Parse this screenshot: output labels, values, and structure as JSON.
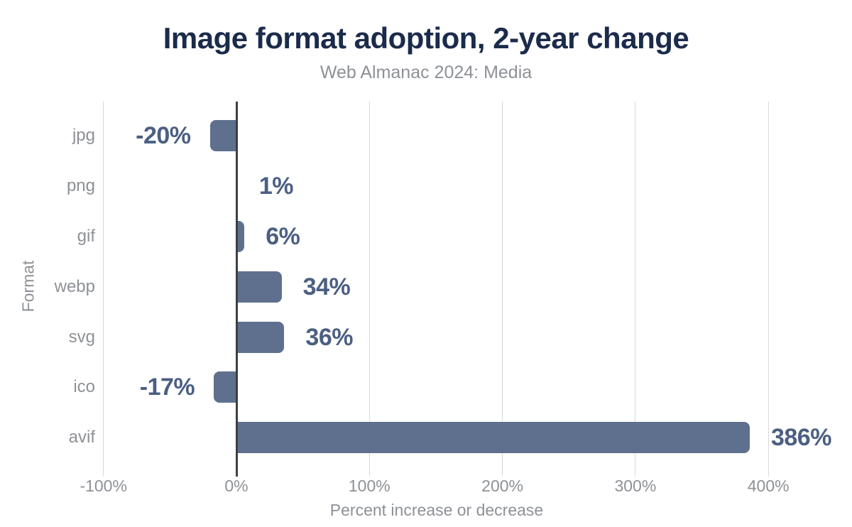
{
  "chart_data": {
    "type": "bar",
    "orientation": "horizontal",
    "title": "Image format adoption, 2-year change",
    "subtitle": "Web Almanac 2024: Media",
    "xlabel": "Percent increase or decrease",
    "ylabel": "Format",
    "categories": [
      "jpg",
      "png",
      "gif",
      "webp",
      "svg",
      "ico",
      "avif"
    ],
    "values": [
      -20,
      1,
      6,
      34,
      36,
      -17,
      386
    ],
    "value_labels": [
      "-20%",
      "1%",
      "6%",
      "34%",
      "36%",
      "-17%",
      "386%"
    ],
    "xlim": [
      -100,
      443
    ],
    "xticks": [
      -100,
      0,
      100,
      200,
      300,
      400
    ],
    "xtick_labels": [
      "-100%",
      "0%",
      "100%",
      "200%",
      "300%",
      "400%"
    ],
    "grid": true,
    "legend": false
  },
  "colors": {
    "background": "#ffffff",
    "bar": "#5f708e",
    "value_label": "#4b5f82",
    "title": "#1b2b4b",
    "subtitle": "#8d9196",
    "axis_text": "#8d9196",
    "gridline": "#d8d8d8",
    "zero_line": "#3c4043"
  }
}
